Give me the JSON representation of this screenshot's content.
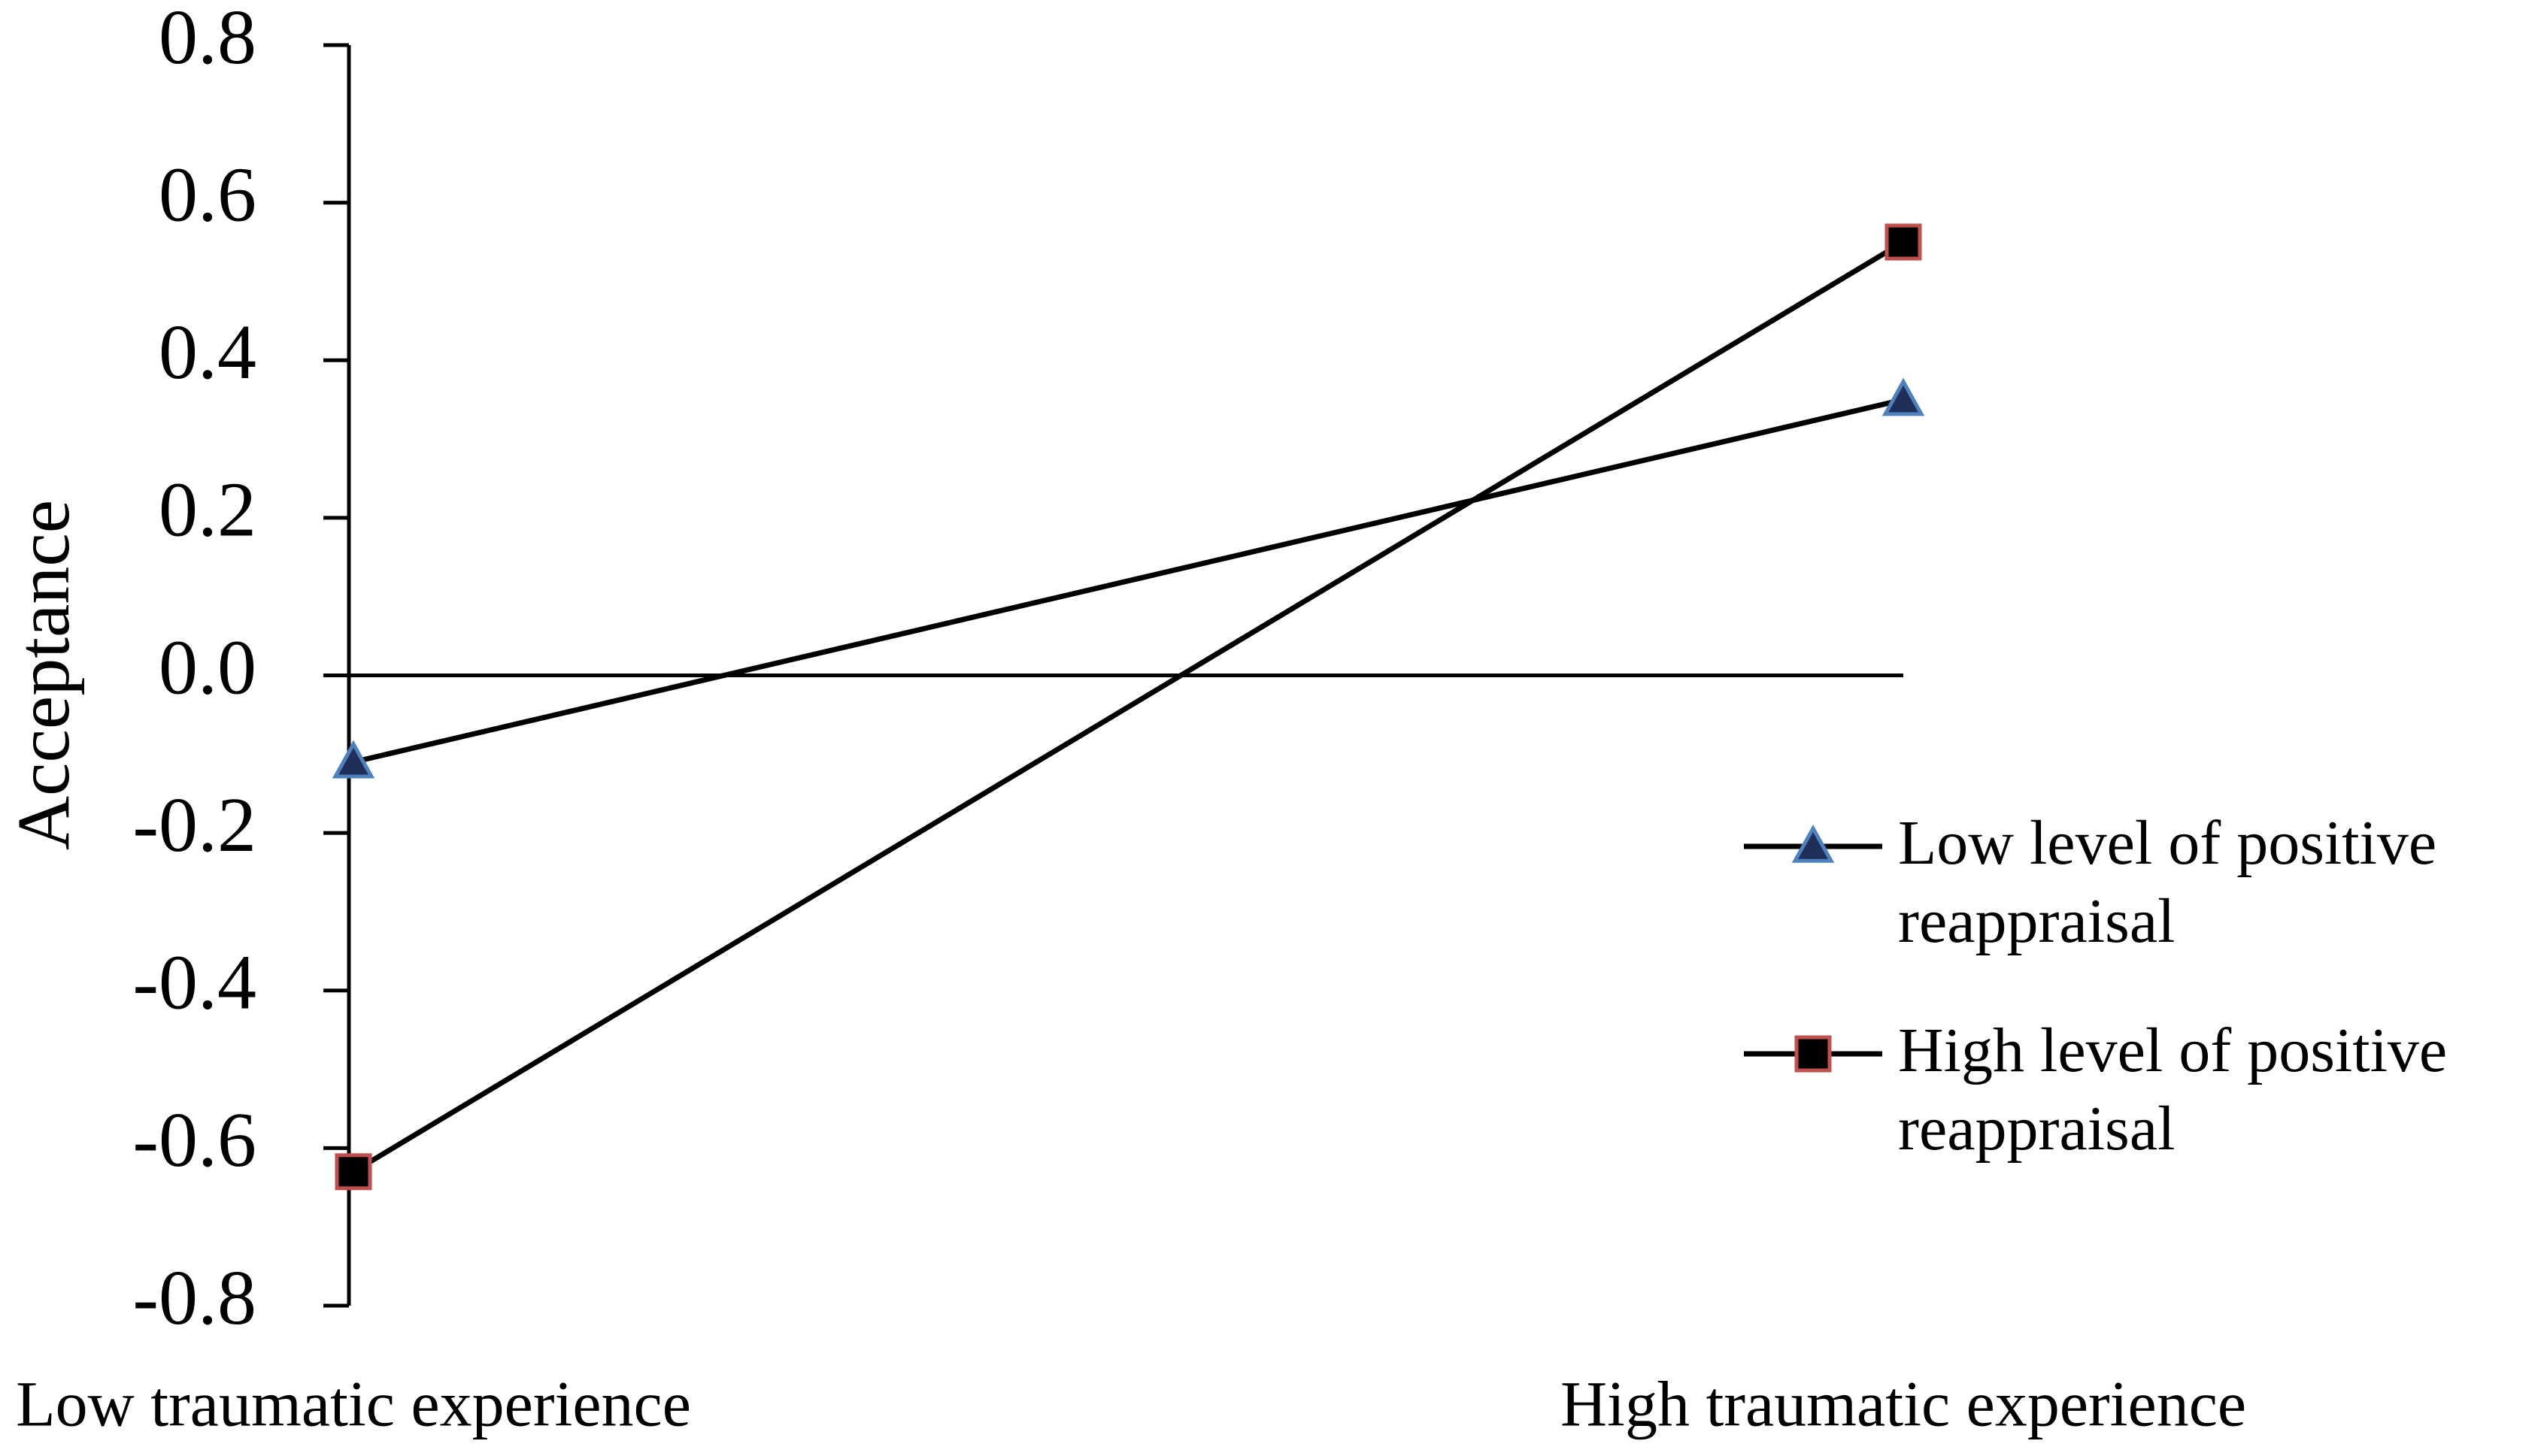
{
  "chart_data": {
    "type": "line",
    "ylabel": "Acceptance",
    "categories": [
      "Low traumatic experience",
      "High traumatic experience"
    ],
    "series": [
      {
        "name": "Low level of positive reappraisal",
        "color": "#000000",
        "marker": "triangle",
        "marker_fill": "#1f2f5a",
        "marker_edge": "#4f81bd",
        "values": [
          -0.11,
          0.35
        ]
      },
      {
        "name": "High level of positive reappraisal",
        "color": "#000000",
        "marker": "square",
        "marker_fill": "#000000",
        "marker_edge": "#c0504d",
        "values": [
          -0.63,
          0.55
        ]
      }
    ],
    "ylim": [
      -0.8,
      0.8
    ],
    "yticks": [
      -0.8,
      -0.6,
      -0.4,
      -0.2,
      {
        "value": 0,
        "label": "0.0"
      },
      0.2,
      0.4,
      0.6,
      0.8
    ],
    "grid": false,
    "legend": "right"
  }
}
